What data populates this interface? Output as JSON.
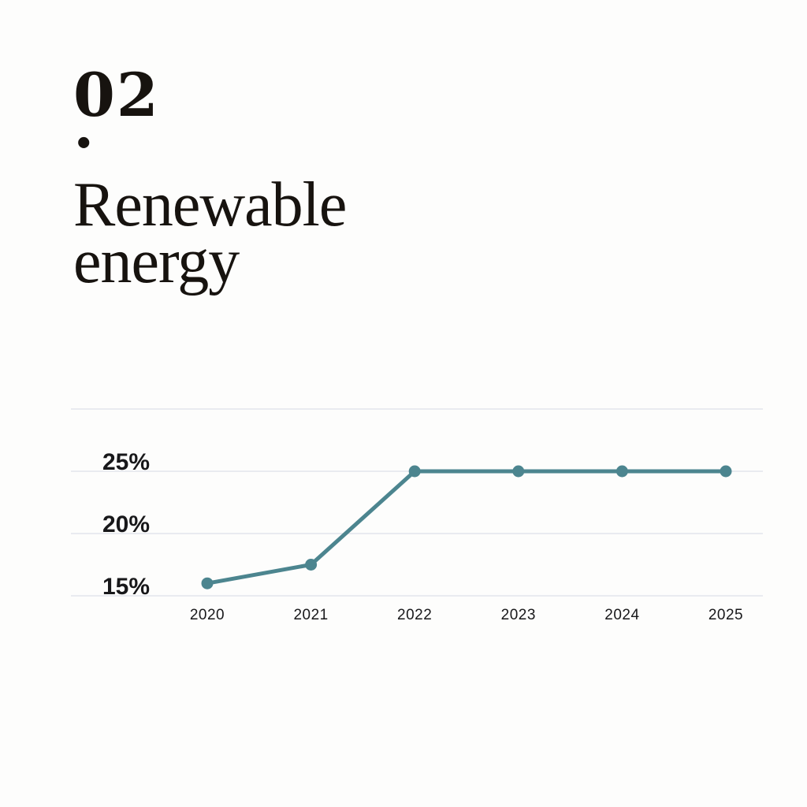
{
  "page": {
    "background": "#fdfdfc"
  },
  "header": {
    "section_number": "02",
    "section_period": ".",
    "title_line1": "Renewable",
    "title_line2": "energy"
  },
  "chart_data": {
    "type": "line",
    "title": "Renewable energy",
    "categories": [
      "2020",
      "2021",
      "2022",
      "2023",
      "2024",
      "2025"
    ],
    "values": [
      16,
      17.5,
      25,
      25,
      25,
      25
    ],
    "unit": "%",
    "xlabel": "",
    "ylabel": "",
    "ylim": [
      15,
      30
    ],
    "gridlines": [
      30,
      25,
      20,
      15
    ],
    "y_ticks": [
      {
        "value": 25,
        "label": "25%"
      },
      {
        "value": 20,
        "label": "20%"
      },
      {
        "value": 15,
        "label": "15%"
      }
    ],
    "grid": "horizontal",
    "legend": "none",
    "line_color": "#4c858f",
    "point_color": "#4c858f",
    "grid_color": "#e9ebf0",
    "label_color": "#18181a"
  }
}
